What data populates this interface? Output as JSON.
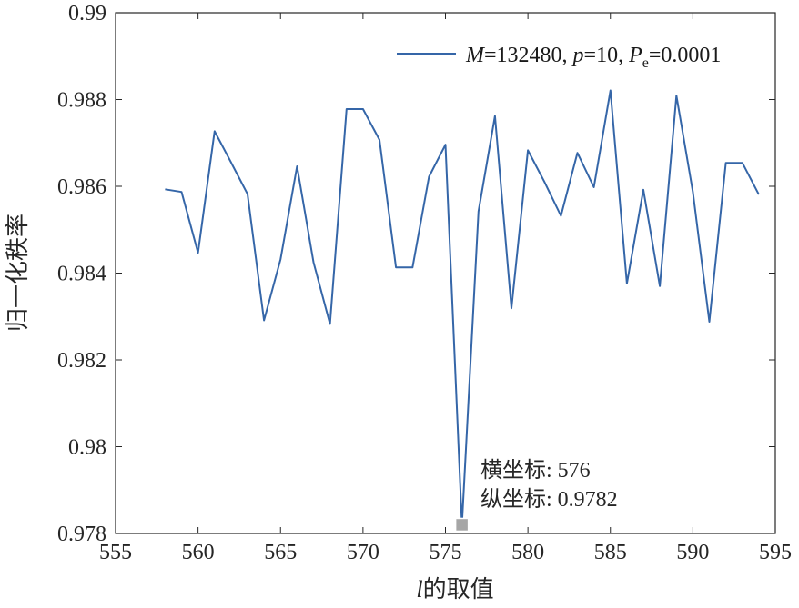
{
  "chart_data": {
    "type": "line",
    "xlabel_var": "l",
    "xlabel_text": "的取值",
    "ylabel": "归一化秩率",
    "xlim": [
      555,
      595
    ],
    "ylim": [
      0.978,
      0.99
    ],
    "x_ticks": [
      "555",
      "560",
      "565",
      "570",
      "575",
      "580",
      "585",
      "590",
      "595"
    ],
    "y_ticks": [
      "0.978",
      "0.98",
      "0.982",
      "0.984",
      "0.986",
      "0.988",
      "0.99"
    ],
    "grid": false,
    "legend_position": "top-right",
    "series": [
      {
        "legend": {
          "m_var": "M",
          "m_text": "=132480, ",
          "p_var": "p",
          "p_text": "=10, ",
          "pe_var": "P",
          "pe_sub": "e",
          "pe_text": "=0.0001"
        },
        "color": "#3566a8",
        "x": [
          558,
          559,
          560,
          561,
          562,
          563,
          564,
          565,
          566,
          567,
          568,
          569,
          570,
          571,
          572,
          573,
          574,
          575,
          576,
          577,
          578,
          579,
          580,
          581,
          582,
          583,
          584,
          585,
          586,
          587,
          588,
          589,
          590,
          591,
          592,
          593,
          594
        ],
        "y": [
          0.98593,
          0.98587,
          0.98447,
          0.98727,
          0.98655,
          0.98582,
          0.98291,
          0.98432,
          0.98646,
          0.98425,
          0.98283,
          0.98778,
          0.98778,
          0.98707,
          0.98413,
          0.98413,
          0.98622,
          0.98696,
          0.9782,
          0.98542,
          0.98762,
          0.98319,
          0.98683,
          0.9861,
          0.98532,
          0.98677,
          0.98598,
          0.98821,
          0.98376,
          0.98592,
          0.9837,
          0.98809,
          0.98587,
          0.98288,
          0.98654,
          0.98654,
          0.98581
        ]
      }
    ],
    "datatip": {
      "x_label": "横坐标: ",
      "x_value": "576",
      "y_label": "纵坐标: ",
      "y_value": "0.9782",
      "marker_color": "#a6a6a6"
    }
  }
}
